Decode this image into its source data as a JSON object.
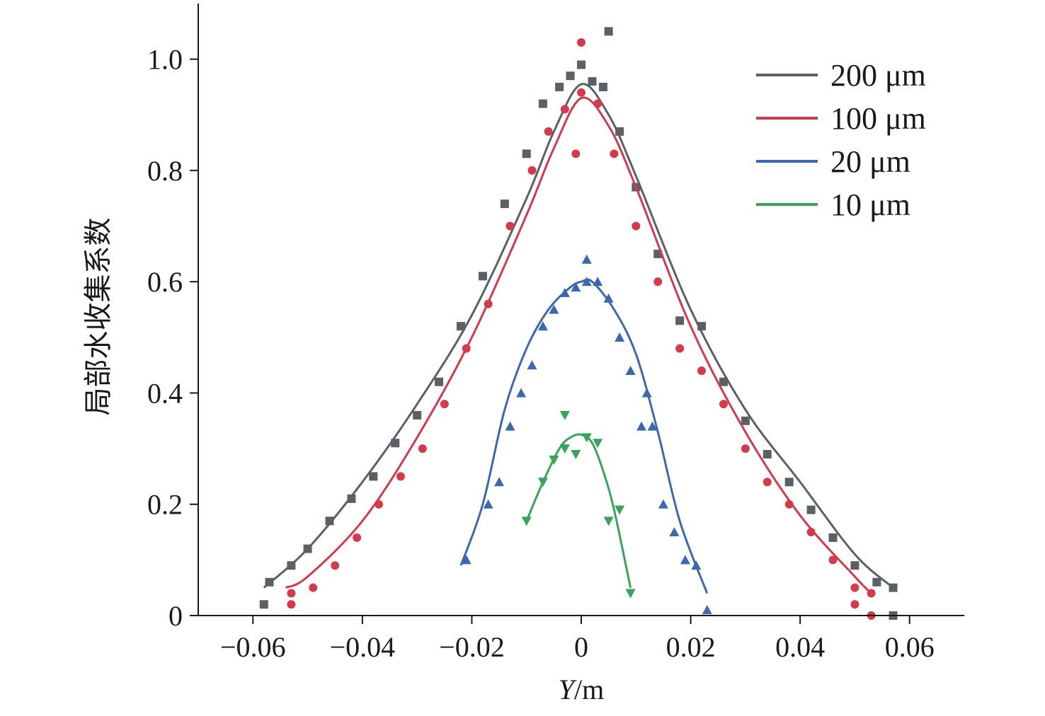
{
  "chart_data": {
    "type": "line",
    "title": "",
    "xlabel_italic": "Y",
    "xlabel_unit": "/m",
    "ylabel": "局部水收集系数",
    "xlim": [
      -0.07,
      0.07
    ],
    "ylim": [
      0,
      1.1
    ],
    "x_ticks": [
      -0.06,
      -0.04,
      -0.02,
      0,
      0.02,
      0.04,
      0.06
    ],
    "x_tick_labels": [
      "−0.06",
      "−0.04",
      "−0.02",
      "0",
      "0.02",
      "0.04",
      "0.06"
    ],
    "y_ticks": [
      0,
      0.2,
      0.4,
      0.6,
      0.8,
      1.0
    ],
    "y_tick_labels": [
      "0",
      "0.2",
      "0.4",
      "0.6",
      "0.8",
      "1.0"
    ],
    "legend_position": "top-right",
    "grid": false,
    "series": [
      {
        "name": "200 μm",
        "color": "#5b5f66",
        "marker": "square",
        "curve": {
          "x": [
            -0.058,
            -0.05,
            -0.04,
            -0.03,
            -0.02,
            -0.01,
            -0.005,
            0,
            0.005,
            0.01,
            0.02,
            0.03,
            0.04,
            0.05,
            0.057
          ],
          "y": [
            0.05,
            0.12,
            0.24,
            0.38,
            0.54,
            0.75,
            0.87,
            0.955,
            0.9,
            0.79,
            0.55,
            0.37,
            0.24,
            0.11,
            0.05
          ]
        },
        "points": {
          "x": [
            -0.057,
            -0.053,
            -0.05,
            -0.046,
            -0.042,
            -0.038,
            -0.034,
            -0.03,
            -0.026,
            -0.022,
            -0.018,
            -0.014,
            -0.01,
            -0.007,
            -0.004,
            -0.002,
            0,
            0.002,
            0.004,
            0.007,
            0.01,
            0.014,
            0.018,
            0.022,
            0.026,
            0.03,
            0.034,
            0.038,
            0.042,
            0.046,
            0.05,
            0.054,
            0.057,
            -0.058,
            0.005,
            0.057
          ],
          "y": [
            0.06,
            0.09,
            0.12,
            0.17,
            0.21,
            0.25,
            0.31,
            0.36,
            0.42,
            0.52,
            0.61,
            0.74,
            0.83,
            0.92,
            0.95,
            0.97,
            0.99,
            0.96,
            0.95,
            0.87,
            0.77,
            0.65,
            0.53,
            0.52,
            0.42,
            0.35,
            0.29,
            0.24,
            0.19,
            0.14,
            0.09,
            0.06,
            0.05,
            0.02,
            1.05,
            0.0
          ]
        }
      },
      {
        "name": "100 μm",
        "color": "#d33a4c",
        "marker": "circle",
        "curve": {
          "x": [
            -0.054,
            -0.05,
            -0.04,
            -0.03,
            -0.02,
            -0.01,
            -0.005,
            0,
            0.005,
            0.01,
            0.02,
            0.03,
            0.04,
            0.05,
            0.053
          ],
          "y": [
            0.05,
            0.07,
            0.17,
            0.32,
            0.5,
            0.72,
            0.84,
            0.93,
            0.88,
            0.77,
            0.52,
            0.33,
            0.18,
            0.07,
            0.04
          ]
        },
        "points": {
          "x": [
            -0.053,
            -0.049,
            -0.045,
            -0.041,
            -0.037,
            -0.033,
            -0.029,
            -0.025,
            -0.021,
            -0.017,
            -0.013,
            -0.009,
            -0.006,
            -0.003,
            0,
            0.003,
            0.006,
            0.01,
            0.014,
            0.018,
            0.022,
            0.026,
            0.03,
            0.034,
            0.038,
            0.042,
            0.046,
            0.05,
            0.053,
            -0.053,
            0.0,
            -0.001,
            0.05,
            0.053
          ],
          "y": [
            0.04,
            0.05,
            0.09,
            0.14,
            0.2,
            0.25,
            0.3,
            0.38,
            0.48,
            0.56,
            0.7,
            0.8,
            0.87,
            0.91,
            0.94,
            0.92,
            0.83,
            0.7,
            0.6,
            0.48,
            0.44,
            0.38,
            0.3,
            0.24,
            0.2,
            0.15,
            0.1,
            0.05,
            0.04,
            0.02,
            1.03,
            0.83,
            0.02,
            0.0
          ]
        }
      },
      {
        "name": "20 μm",
        "color": "#3c68ad",
        "marker": "triangle-up",
        "curve": {
          "x": [
            -0.022,
            -0.018,
            -0.014,
            -0.01,
            -0.006,
            -0.002,
            0,
            0.002,
            0.006,
            0.01,
            0.014,
            0.018,
            0.023
          ],
          "y": [
            0.09,
            0.2,
            0.37,
            0.48,
            0.55,
            0.59,
            0.6,
            0.6,
            0.55,
            0.47,
            0.33,
            0.17,
            0.04
          ]
        },
        "points": {
          "x": [
            -0.021,
            -0.017,
            -0.015,
            -0.013,
            -0.011,
            -0.009,
            -0.007,
            -0.005,
            -0.003,
            -0.001,
            0.001,
            0.003,
            0.005,
            0.007,
            0.009,
            0.011,
            0.013,
            0.015,
            0.017,
            0.019,
            0.021,
            0.001,
            0.012,
            0.023
          ],
          "y": [
            0.1,
            0.2,
            0.24,
            0.34,
            0.4,
            0.45,
            0.52,
            0.55,
            0.58,
            0.59,
            0.6,
            0.6,
            0.57,
            0.5,
            0.44,
            0.34,
            0.34,
            0.2,
            0.15,
            0.1,
            0.09,
            0.64,
            0.4,
            0.01
          ]
        }
      },
      {
        "name": "10 μm",
        "color": "#3aa35b",
        "marker": "triangle-down",
        "curve": {
          "x": [
            -0.01,
            -0.007,
            -0.004,
            -0.002,
            0,
            0.002,
            0.004,
            0.006,
            0.009
          ],
          "y": [
            0.17,
            0.24,
            0.3,
            0.32,
            0.325,
            0.31,
            0.26,
            0.19,
            0.05
          ]
        },
        "points": {
          "x": [
            -0.01,
            -0.007,
            -0.005,
            -0.003,
            -0.001,
            0.001,
            0.003,
            0.005,
            0.007,
            0.009,
            -0.003,
            0.009
          ],
          "y": [
            0.17,
            0.24,
            0.28,
            0.3,
            0.29,
            0.32,
            0.31,
            0.17,
            0.19,
            0.04,
            0.36,
            0.04
          ]
        }
      }
    ]
  }
}
